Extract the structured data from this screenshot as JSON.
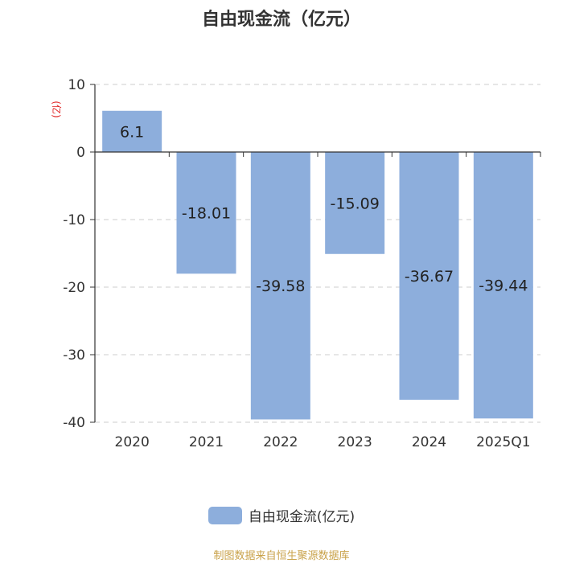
{
  "chart_data": {
    "type": "bar",
    "title": "自由现金流（亿元）",
    "categories": [
      "2020",
      "2021",
      "2022",
      "2023",
      "2024",
      "2025Q1"
    ],
    "series": [
      {
        "name": "自由现金流(亿元)",
        "values": [
          6.1,
          -18.01,
          -39.58,
          -15.09,
          -36.67,
          -39.44
        ]
      }
    ],
    "data_labels": [
      "6.1",
      "-18.01",
      "-39.58",
      "-15.09",
      "-36.67",
      "-39.44"
    ],
    "ylabel": "(亿)",
    "ylim": [
      -40,
      10
    ],
    "yticks": [
      10,
      0,
      -10,
      -20,
      -30,
      -40
    ],
    "grid": true,
    "legend_position": "bottom-center",
    "bar_color": "#8daedc",
    "axis_label_color": "#e02020"
  },
  "source_text": "制图数据来自恒生聚源数据库"
}
